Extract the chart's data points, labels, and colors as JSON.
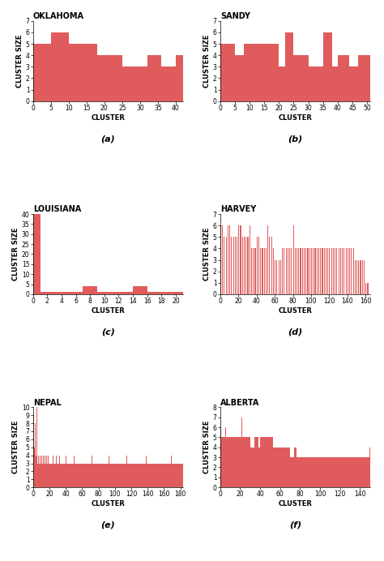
{
  "bar_color": "#e05c5c",
  "subplots": [
    {
      "title": "OKLAHOMA",
      "label": "(a)",
      "xlabel": "CLUSTER",
      "ylabel": "CLUSTER SIZE",
      "xlim": [
        0,
        42
      ],
      "ylim": [
        0,
        7
      ],
      "yticks": [
        0,
        1,
        2,
        3,
        4,
        5,
        6,
        7
      ],
      "xticks": [
        0,
        5,
        10,
        15,
        20,
        25,
        30,
        35,
        40
      ],
      "bar_x": [
        0,
        1,
        2,
        3,
        4,
        5,
        6,
        7,
        8,
        9,
        10,
        11,
        12,
        13,
        14,
        15,
        16,
        17,
        18,
        19,
        20,
        21,
        22,
        23,
        24,
        25,
        26,
        27,
        28,
        29,
        30,
        31,
        32,
        33,
        34,
        35,
        36,
        37,
        38,
        39,
        40,
        41
      ],
      "bar_h": [
        5,
        5,
        5,
        5,
        5,
        6,
        6,
        6,
        6,
        6,
        5,
        5,
        5,
        5,
        5,
        5,
        5,
        5,
        4,
        4,
        4,
        4,
        4,
        4,
        4,
        3,
        3,
        3,
        3,
        3,
        3,
        3,
        4,
        4,
        4,
        4,
        3,
        3,
        3,
        3,
        4,
        4
      ]
    },
    {
      "title": "SANDY",
      "label": "(b)",
      "xlabel": "CLUSTER",
      "ylabel": "CLUSTER SIZE",
      "xlim": [
        0,
        51
      ],
      "ylim": [
        0,
        7
      ],
      "yticks": [
        0,
        1,
        2,
        3,
        4,
        5,
        6,
        7
      ],
      "xticks": [
        0,
        5,
        10,
        15,
        20,
        25,
        30,
        35,
        40,
        45,
        50
      ],
      "bar_x": [
        0,
        1,
        2,
        3,
        4,
        5,
        6,
        7,
        8,
        9,
        10,
        11,
        12,
        13,
        14,
        15,
        16,
        17,
        18,
        19,
        20,
        21,
        22,
        23,
        24,
        25,
        26,
        27,
        28,
        29,
        30,
        31,
        32,
        33,
        34,
        35,
        36,
        37,
        38,
        39,
        40,
        41,
        42,
        43,
        44,
        45,
        46,
        47,
        48,
        49,
        50
      ],
      "bar_h": [
        5,
        5,
        5,
        5,
        5,
        4,
        4,
        4,
        5,
        5,
        5,
        5,
        5,
        5,
        5,
        5,
        5,
        5,
        5,
        5,
        3,
        3,
        6,
        6,
        6,
        4,
        4,
        4,
        4,
        4,
        3,
        3,
        3,
        3,
        3,
        6,
        6,
        6,
        3,
        3,
        4,
        4,
        4,
        4,
        3,
        3,
        3,
        4,
        4,
        4,
        4
      ]
    },
    {
      "title": "LOUISIANA",
      "label": "(c)",
      "xlabel": "CLUSTER",
      "ylabel": "CLUSTER SIZE",
      "xlim": [
        0,
        21
      ],
      "ylim": [
        0,
        40
      ],
      "yticks": [
        0,
        5,
        10,
        15,
        20,
        25,
        30,
        35,
        40
      ],
      "xticks": [
        0,
        2,
        4,
        6,
        8,
        10,
        12,
        14,
        16,
        18,
        20
      ],
      "bar_x": [
        0,
        1,
        2,
        3,
        4,
        5,
        6,
        7,
        8,
        9,
        10,
        11,
        12,
        13,
        14,
        15,
        16,
        17,
        18,
        19,
        20
      ],
      "bar_h": [
        40,
        1,
        1,
        1,
        1,
        1,
        1,
        4,
        4,
        1,
        1,
        1,
        1,
        1,
        4,
        4,
        1,
        1,
        1,
        1,
        1
      ]
    },
    {
      "title": "HARVEY",
      "label": "(d)",
      "xlabel": "CLUSTER",
      "ylabel": "CLUSTER SIZE",
      "xlim": [
        0,
        165
      ],
      "ylim": [
        0,
        7
      ],
      "yticks": [
        0,
        1,
        2,
        3,
        4,
        5,
        6,
        7
      ],
      "xticks": [
        0,
        20,
        40,
        60,
        80,
        100,
        120,
        140,
        160
      ],
      "bar_x": [
        0,
        2,
        4,
        6,
        8,
        10,
        12,
        14,
        16,
        18,
        20,
        22,
        24,
        26,
        28,
        30,
        32,
        34,
        36,
        38,
        40,
        42,
        44,
        46,
        48,
        50,
        52,
        54,
        56,
        58,
        60,
        62,
        64,
        66,
        68,
        70,
        72,
        74,
        76,
        78,
        80,
        82,
        84,
        86,
        88,
        90,
        92,
        94,
        96,
        98,
        100,
        102,
        104,
        106,
        108,
        110,
        112,
        114,
        116,
        118,
        120,
        122,
        124,
        126,
        128,
        130,
        132,
        134,
        136,
        138,
        140,
        142,
        144,
        146,
        148,
        150,
        152,
        154,
        156,
        158,
        160,
        162
      ],
      "bar_h": [
        6,
        6,
        5,
        5,
        6,
        6,
        5,
        5,
        5,
        5,
        6,
        6,
        5,
        5,
        5,
        5,
        6,
        4,
        4,
        4,
        5,
        5,
        4,
        4,
        4,
        4,
        6,
        5,
        5,
        4,
        3,
        3,
        3,
        3,
        4,
        4,
        4,
        4,
        4,
        4,
        6,
        4,
        4,
        4,
        4,
        4,
        4,
        4,
        4,
        4,
        4,
        4,
        4,
        4,
        4,
        4,
        4,
        4,
        4,
        4,
        4,
        4,
        4,
        4,
        4,
        4,
        4,
        4,
        4,
        4,
        4,
        4,
        4,
        4,
        3,
        3,
        3,
        3,
        3,
        3,
        1,
        1
      ]
    },
    {
      "title": "NEPAL",
      "label": "(e)",
      "xlabel": "CLUSTER",
      "ylabel": "CLUSTER SIZE",
      "xlim": [
        0,
        183
      ],
      "ylim": [
        0,
        10
      ],
      "yticks": [
        0,
        1,
        2,
        3,
        4,
        5,
        6,
        7,
        8,
        9,
        10
      ],
      "xticks": [
        0,
        20,
        40,
        60,
        80,
        100,
        120,
        140,
        160,
        180
      ],
      "bar_x": [
        0,
        1,
        2,
        3,
        4,
        5,
        6,
        7,
        8,
        9,
        10,
        11,
        12,
        13,
        14,
        15,
        16,
        17,
        18,
        19,
        20,
        21,
        22,
        23,
        24,
        25,
        26,
        27,
        28,
        29,
        30,
        31,
        32,
        33,
        34,
        35,
        36,
        37,
        38,
        39,
        40,
        41,
        42,
        43,
        44,
        45,
        46,
        47,
        48,
        49,
        50,
        51,
        52,
        53,
        54,
        55,
        56,
        57,
        58,
        59,
        60,
        61,
        62,
        63,
        64,
        65,
        66,
        67,
        68,
        69,
        70,
        71,
        72,
        73,
        74,
        75,
        76,
        77,
        78,
        79,
        80,
        81,
        82,
        83,
        84,
        85,
        86,
        87,
        88,
        89,
        90,
        91,
        92,
        93,
        94,
        95,
        96,
        97,
        98,
        99,
        100,
        101,
        102,
        103,
        104,
        105,
        106,
        107,
        108,
        109,
        110,
        111,
        112,
        113,
        114,
        115,
        116,
        117,
        118,
        119,
        120,
        121,
        122,
        123,
        124,
        125,
        126,
        127,
        128,
        129,
        130,
        131,
        132,
        133,
        134,
        135,
        136,
        137,
        138,
        139,
        140,
        141,
        142,
        143,
        144,
        145,
        146,
        147,
        148,
        149,
        150,
        151,
        152,
        153,
        154,
        155,
        156,
        157,
        158,
        159,
        160,
        161,
        162,
        163,
        164,
        165,
        166,
        167,
        168,
        169,
        170,
        171,
        172,
        173,
        174,
        175,
        176,
        177,
        178,
        179,
        180,
        181,
        182
      ],
      "bar_h": [
        9,
        5,
        8,
        4,
        10,
        3,
        4,
        3,
        4,
        3,
        4,
        3,
        4,
        3,
        4,
        3,
        4,
        3,
        4,
        3,
        3,
        3,
        3,
        3,
        4,
        3,
        3,
        3,
        4,
        3,
        3,
        3,
        4,
        3,
        3,
        3,
        3,
        3,
        3,
        3,
        4,
        3,
        3,
        3,
        3,
        3,
        3,
        3,
        3,
        3,
        4,
        3,
        3,
        3,
        3,
        3,
        3,
        3,
        3,
        3,
        3,
        3,
        3,
        3,
        3,
        3,
        3,
        3,
        3,
        3,
        3,
        3,
        4,
        3,
        3,
        3,
        3,
        3,
        3,
        3,
        3,
        3,
        3,
        3,
        3,
        3,
        3,
        3,
        3,
        3,
        3,
        3,
        4,
        3,
        3,
        3,
        3,
        3,
        3,
        3,
        3,
        3,
        3,
        3,
        3,
        3,
        3,
        3,
        3,
        3,
        3,
        3,
        3,
        3,
        4,
        3,
        3,
        3,
        3,
        3,
        3,
        3,
        3,
        3,
        3,
        3,
        3,
        3,
        3,
        3,
        3,
        3,
        3,
        3,
        3,
        3,
        3,
        3,
        4,
        3,
        3,
        3,
        3,
        3,
        3,
        3,
        3,
        3,
        3,
        3,
        3,
        3,
        3,
        3,
        3,
        3,
        3,
        3,
        3,
        3,
        3,
        3,
        3,
        3,
        3,
        3,
        3,
        3,
        4,
        3,
        3,
        3,
        3,
        3,
        3,
        3,
        3,
        3,
        3,
        3,
        3,
        3,
        3
      ]
    },
    {
      "title": "ALBERTA",
      "label": "(f)",
      "xlabel": "CLUSTER",
      "ylabel": "CLUSTER SIZE",
      "xlim": [
        0,
        150
      ],
      "ylim": [
        0,
        8
      ],
      "yticks": [
        0,
        1,
        2,
        3,
        4,
        5,
        6,
        7,
        8
      ],
      "xticks": [
        0,
        20,
        40,
        60,
        80,
        100,
        120,
        140
      ],
      "bar_x": [
        0,
        1,
        2,
        3,
        4,
        5,
        6,
        7,
        8,
        9,
        10,
        11,
        12,
        13,
        14,
        15,
        16,
        17,
        18,
        19,
        20,
        21,
        22,
        23,
        24,
        25,
        26,
        27,
        28,
        29,
        30,
        31,
        32,
        33,
        34,
        35,
        36,
        37,
        38,
        39,
        40,
        41,
        42,
        43,
        44,
        45,
        46,
        47,
        48,
        49,
        50,
        51,
        52,
        53,
        54,
        55,
        56,
        57,
        58,
        59,
        60,
        61,
        62,
        63,
        64,
        65,
        66,
        67,
        68,
        69,
        70,
        71,
        72,
        73,
        74,
        75,
        76,
        77,
        78,
        79,
        80,
        81,
        82,
        83,
        84,
        85,
        86,
        87,
        88,
        89,
        90,
        91,
        92,
        93,
        94,
        95,
        96,
        97,
        98,
        99,
        100,
        101,
        102,
        103,
        104,
        105,
        106,
        107,
        108,
        109,
        110,
        111,
        112,
        113,
        114,
        115,
        116,
        117,
        118,
        119,
        120,
        121,
        122,
        123,
        124,
        125,
        126,
        127,
        128,
        129,
        130,
        131,
        132,
        133,
        134,
        135,
        136,
        137,
        138,
        139,
        140,
        141,
        142,
        143,
        144,
        145,
        146,
        147,
        148,
        149
      ],
      "bar_h": [
        6,
        5,
        5,
        5,
        5,
        6,
        5,
        5,
        5,
        5,
        5,
        5,
        5,
        5,
        5,
        5,
        5,
        5,
        5,
        5,
        5,
        7,
        5,
        5,
        5,
        5,
        5,
        5,
        5,
        5,
        4,
        4,
        4,
        4,
        5,
        5,
        5,
        5,
        4,
        4,
        5,
        5,
        5,
        5,
        5,
        5,
        5,
        5,
        5,
        5,
        5,
        5,
        5,
        4,
        4,
        4,
        4,
        4,
        4,
        4,
        4,
        4,
        4,
        4,
        4,
        4,
        4,
        4,
        4,
        4,
        3,
        3,
        3,
        3,
        4,
        4,
        3,
        3,
        3,
        3,
        3,
        3,
        3,
        3,
        3,
        3,
        3,
        3,
        3,
        3,
        3,
        3,
        3,
        3,
        3,
        3,
        3,
        3,
        3,
        3,
        3,
        3,
        3,
        3,
        3,
        3,
        3,
        3,
        3,
        3,
        3,
        3,
        3,
        3,
        3,
        3,
        3,
        3,
        3,
        3,
        3,
        3,
        3,
        3,
        3,
        3,
        3,
        3,
        3,
        3,
        3,
        3,
        3,
        3,
        3,
        3,
        3,
        3,
        3,
        3,
        3,
        3,
        3,
        3,
        3,
        3,
        3,
        3,
        3,
        4
      ]
    }
  ]
}
